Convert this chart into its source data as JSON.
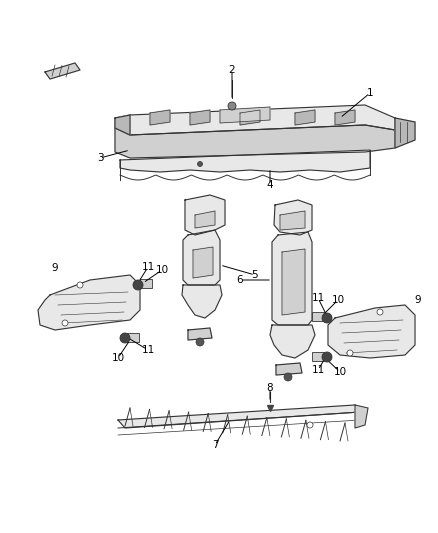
{
  "background_color": "#ffffff",
  "fig_width": 4.38,
  "fig_height": 5.33,
  "dpi": 100,
  "lc": "#333333",
  "fc": "#e8e8e8",
  "fc2": "#d0d0d0",
  "fc3": "#b8b8b8",
  "label_fontsize": 7.5,
  "lw": 0.8
}
